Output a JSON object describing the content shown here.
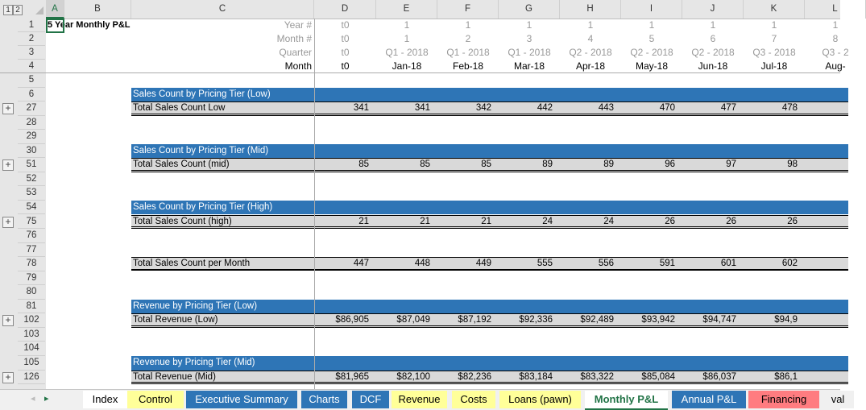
{
  "outline_levels": [
    "1",
    "2"
  ],
  "columns": [
    "A",
    "B",
    "C",
    "D",
    "E",
    "F",
    "G",
    "H",
    "I",
    "J",
    "K",
    "L"
  ],
  "selected_column": "A",
  "title": "5 Year Monthly P&L",
  "header_rows": [
    {
      "num": "1",
      "label": "Year #",
      "values": [
        "t0",
        "1",
        "1",
        "1",
        "1",
        "1",
        "1",
        "1",
        "1"
      ]
    },
    {
      "num": "2",
      "label": "Month #",
      "values": [
        "t0",
        "1",
        "2",
        "3",
        "4",
        "5",
        "6",
        "7",
        "8"
      ]
    },
    {
      "num": "3",
      "label": "Quarter",
      "values": [
        "t0",
        "Q1 - 2018",
        "Q1 - 2018",
        "Q1 - 2018",
        "Q2 - 2018",
        "Q2 - 2018",
        "Q2 - 2018",
        "Q3 - 2018",
        "Q3 - 2"
      ]
    },
    {
      "num": "4",
      "label": "Month",
      "values": [
        "t0",
        "Jan-18",
        "Feb-18",
        "Mar-18",
        "Apr-18",
        "May-18",
        "Jun-18",
        "Jul-18",
        "Aug-"
      ]
    }
  ],
  "rows": [
    {
      "num": "5",
      "type": "blank"
    },
    {
      "num": "6",
      "type": "header",
      "label": "Sales Count by Pricing Tier (Low)"
    },
    {
      "num": "27",
      "type": "total",
      "plus": true,
      "label": "Total Sales Count Low",
      "values": [
        "341",
        "341",
        "342",
        "442",
        "443",
        "470",
        "477",
        "478"
      ]
    },
    {
      "num": "28",
      "type": "blank"
    },
    {
      "num": "29",
      "type": "blank"
    },
    {
      "num": "30",
      "type": "header",
      "label": "Sales Count by Pricing Tier (Mid)"
    },
    {
      "num": "51",
      "type": "total",
      "plus": true,
      "label": "Total Sales Count (mid)",
      "values": [
        "85",
        "85",
        "85",
        "89",
        "89",
        "96",
        "97",
        "98"
      ]
    },
    {
      "num": "52",
      "type": "blank"
    },
    {
      "num": "53",
      "type": "blank"
    },
    {
      "num": "54",
      "type": "header",
      "label": "Sales Count by Pricing Tier (High)"
    },
    {
      "num": "75",
      "type": "total",
      "plus": true,
      "label": "Total Sales Count (high)",
      "values": [
        "21",
        "21",
        "21",
        "24",
        "24",
        "26",
        "26",
        "26"
      ]
    },
    {
      "num": "76",
      "type": "blank"
    },
    {
      "num": "77",
      "type": "blank"
    },
    {
      "num": "78",
      "type": "sum",
      "label": "Total Sales Count per Month",
      "values": [
        "447",
        "448",
        "449",
        "555",
        "556",
        "591",
        "601",
        "602"
      ]
    },
    {
      "num": "79",
      "type": "blank"
    },
    {
      "num": "80",
      "type": "blank"
    },
    {
      "num": "81",
      "type": "header",
      "label": "Revenue by Pricing Tier (Low)"
    },
    {
      "num": "102",
      "type": "total",
      "plus": true,
      "label": "Total Revenue (Low)",
      "values": [
        "$86,905",
        "$87,049",
        "$87,192",
        "$92,336",
        "$92,489",
        "$93,942",
        "$94,747",
        "$94,9"
      ]
    },
    {
      "num": "103",
      "type": "blank"
    },
    {
      "num": "104",
      "type": "blank"
    },
    {
      "num": "105",
      "type": "header",
      "label": "Revenue by Pricing Tier (Mid)"
    },
    {
      "num": "126",
      "type": "total",
      "plus": true,
      "label": "Total Revenue (Mid)",
      "values": [
        "$81,965",
        "$82,100",
        "$82,236",
        "$83,184",
        "$83,322",
        "$85,084",
        "$86,037",
        "$86,1"
      ]
    }
  ],
  "tabs": [
    {
      "label": "Index",
      "color": "#ffffff"
    },
    {
      "label": "Control",
      "color": "#ffff99"
    },
    {
      "label": "Executive Summary",
      "color": "#2e75b6"
    },
    {
      "label": "Charts",
      "color": "#2e75b6"
    },
    {
      "label": "DCF",
      "color": "#2e75b6"
    },
    {
      "label": "Revenue",
      "color": "#ffff99"
    },
    {
      "label": "Costs",
      "color": "#ffff99"
    },
    {
      "label": "Loans (pawn)",
      "color": "#ffff99"
    },
    {
      "label": "Monthly P&L",
      "color": "#ffffff",
      "active": true
    },
    {
      "label": "Annual P&L",
      "color": "#2e75b6"
    },
    {
      "label": "Financing",
      "color": "#ff7c80"
    },
    {
      "label": "val",
      "color": "#f0f0f0"
    }
  ],
  "colors": {
    "header_blue": "#2e75b6",
    "total_gray": "#d9d9d9",
    "accent_green": "#217346"
  }
}
